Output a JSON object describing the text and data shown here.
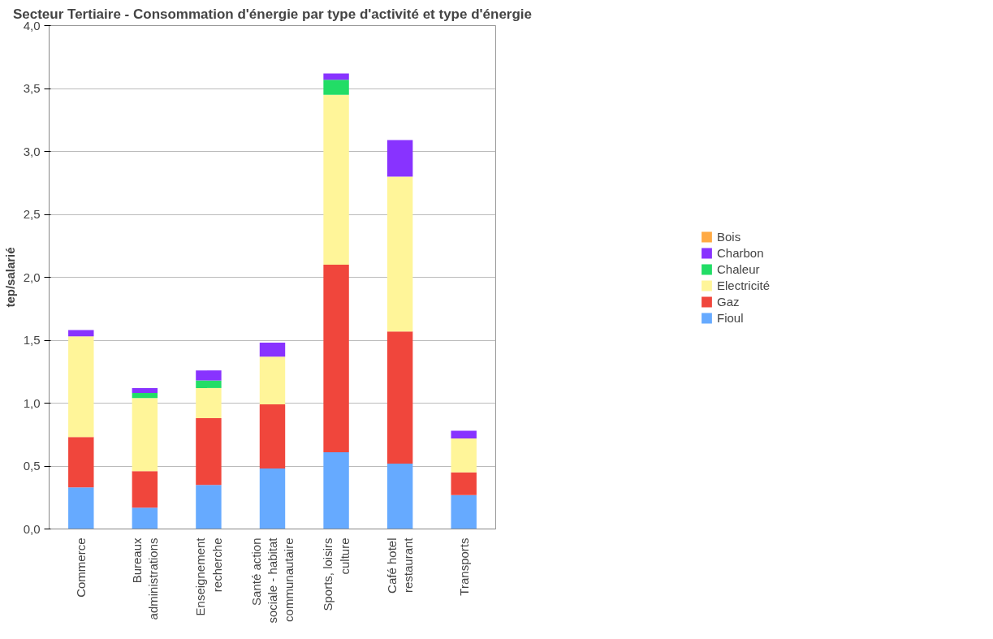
{
  "chart_data": {
    "type": "bar",
    "stacked": true,
    "title": "Secteur Tertiaire - Consommation d'énergie par type d'activité et type d'énergie",
    "ylabel": "tep/salarié",
    "categories": [
      "Commerce",
      "Bureaux administrations",
      "Enseignement recherche",
      "Santé action sociale - habitat communautaire",
      "Sports, loisirs culture",
      "Café hotel restaurant",
      "Transports"
    ],
    "series": [
      {
        "name": "Fioul",
        "color": "#66aaff",
        "values": [
          0.33,
          0.17,
          0.35,
          0.48,
          0.61,
          0.52,
          0.27
        ]
      },
      {
        "name": "Gaz",
        "color": "#f0463c",
        "values": [
          0.4,
          0.29,
          0.53,
          0.51,
          1.49,
          1.05,
          0.18
        ]
      },
      {
        "name": "Electricité",
        "color": "#fff599",
        "values": [
          0.8,
          0.58,
          0.24,
          0.38,
          1.35,
          1.23,
          0.27
        ]
      },
      {
        "name": "Chaleur",
        "color": "#22dd66",
        "values": [
          0.0,
          0.04,
          0.06,
          0.0,
          0.12,
          0.0,
          0.0
        ]
      },
      {
        "name": "Charbon",
        "color": "#8833ff",
        "values": [
          0.05,
          0.04,
          0.08,
          0.11,
          0.05,
          0.29,
          0.06
        ]
      },
      {
        "name": "Bois",
        "color": "#ffaa44",
        "values": [
          0,
          0,
          0,
          0,
          0,
          0,
          0
        ]
      }
    ],
    "ylim": [
      0,
      4
    ],
    "yticks": [
      {
        "value": 0,
        "label": "0,0"
      },
      {
        "value": 0.5,
        "label": "0,5"
      },
      {
        "value": 1,
        "label": "1,0"
      },
      {
        "value": 1.5,
        "label": "1,5"
      },
      {
        "value": 2,
        "label": "2,0"
      },
      {
        "value": 2.5,
        "label": "2,5"
      },
      {
        "value": 3,
        "label": "3,0"
      },
      {
        "value": 3.5,
        "label": "3,5"
      },
      {
        "value": 4,
        "label": "4,0"
      }
    ],
    "grid": "y",
    "legend": "right"
  }
}
